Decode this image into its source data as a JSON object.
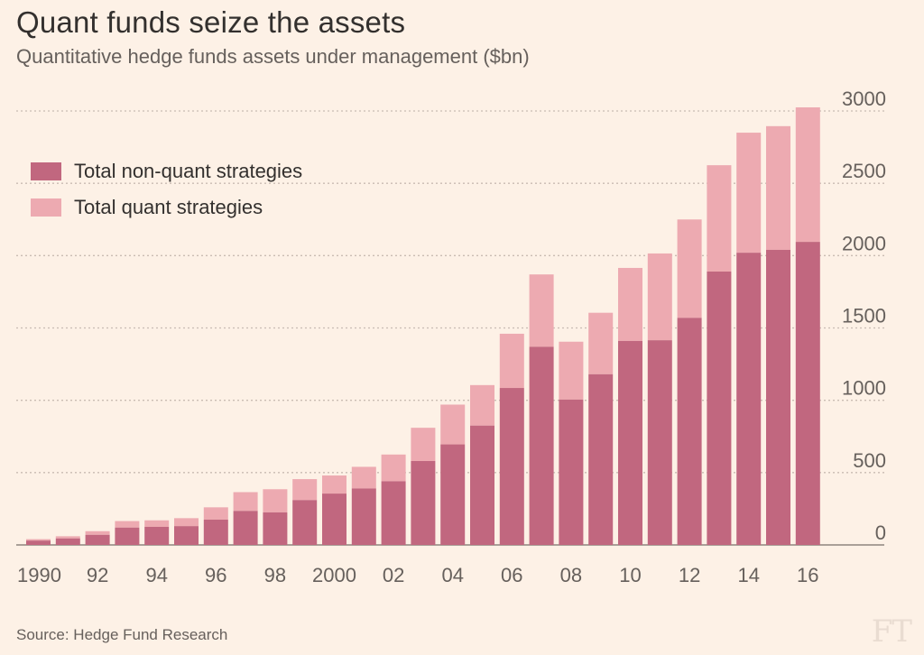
{
  "title": "Quant funds seize the assets",
  "subtitle": "Quantitative hedge funds assets under management ($bn)",
  "source": "Source: Hedge Fund Research",
  "logo": "FT",
  "colors": {
    "background": "#FDF1E6",
    "non_quant": "#C1677F",
    "quant": "#EDAAB1",
    "grid": "#C9BCB3",
    "axis_text": "#66605C"
  },
  "chart_data": {
    "type": "bar",
    "stacked": true,
    "title": "Quant funds seize the assets",
    "subtitle": "Quantitative hedge funds assets under management ($bn)",
    "xlabel": "",
    "ylabel": "",
    "ylim": [
      0,
      3000
    ],
    "yticks": [
      0,
      500,
      1000,
      1500,
      2000,
      2500,
      3000
    ],
    "y_axis_side": "right",
    "grid": true,
    "legend_position": "top-left",
    "categories": [
      1990,
      1991,
      1992,
      1993,
      1994,
      1995,
      1996,
      1997,
      1998,
      1999,
      2000,
      2001,
      2002,
      2003,
      2004,
      2005,
      2006,
      2007,
      2008,
      2009,
      2010,
      2011,
      2012,
      2013,
      2014,
      2015,
      2016
    ],
    "xtick_labels": [
      "1990",
      "92",
      "94",
      "96",
      "98",
      "2000",
      "02",
      "04",
      "06",
      "08",
      "10",
      "12",
      "14",
      "16"
    ],
    "series": [
      {
        "name": "Total non-quant strategies",
        "values": [
          30,
          45,
          70,
          120,
          125,
          130,
          175,
          235,
          225,
          310,
          355,
          390,
          440,
          580,
          695,
          825,
          1085,
          1370,
          1005,
          1180,
          1410,
          1415,
          1570,
          1890,
          2020,
          2040,
          2095
        ]
      },
      {
        "name": "Total quant strategies",
        "values": [
          10,
          15,
          25,
          45,
          45,
          55,
          85,
          130,
          160,
          145,
          125,
          150,
          185,
          230,
          275,
          280,
          375,
          500,
          400,
          425,
          505,
          600,
          680,
          735,
          830,
          855,
          930
        ]
      }
    ]
  }
}
